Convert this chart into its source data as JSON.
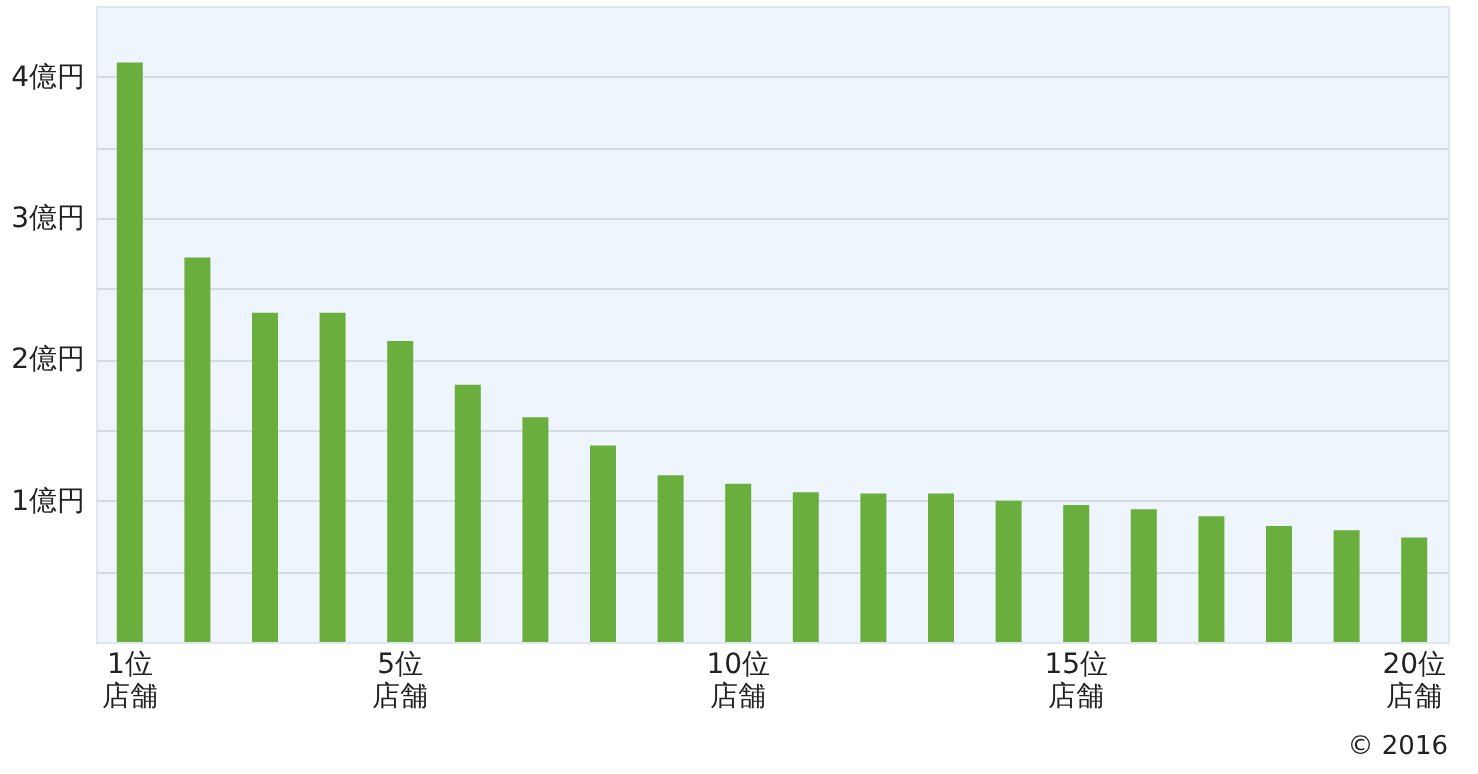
{
  "chart_data": {
    "type": "bar",
    "categories": [
      "1位店舗",
      null,
      null,
      null,
      "5位店舗",
      null,
      null,
      null,
      null,
      "10位店舗",
      null,
      null,
      null,
      null,
      "15位店舗",
      null,
      null,
      null,
      null,
      "20位店舗"
    ],
    "values": [
      4.1,
      2.72,
      2.33,
      2.33,
      2.13,
      1.82,
      1.59,
      1.39,
      1.18,
      1.12,
      1.06,
      1.05,
      1.05,
      1.0,
      0.97,
      0.94,
      0.89,
      0.82,
      0.79,
      0.74
    ],
    "color": "#6aae3e",
    "ylim": [
      0,
      4.5
    ],
    "yticks": [
      {
        "value": 0.5,
        "label": null
      },
      {
        "value": 1,
        "label": "1億円"
      },
      {
        "value": 1.5,
        "label": null
      },
      {
        "value": 2,
        "label": "2億円"
      },
      {
        "value": 2.5,
        "label": null
      },
      {
        "value": 3,
        "label": "3億円"
      },
      {
        "value": 3.5,
        "label": null
      },
      {
        "value": 4,
        "label": "4億円"
      }
    ],
    "grid": "y",
    "annotations": [
      "© 2016"
    ]
  }
}
